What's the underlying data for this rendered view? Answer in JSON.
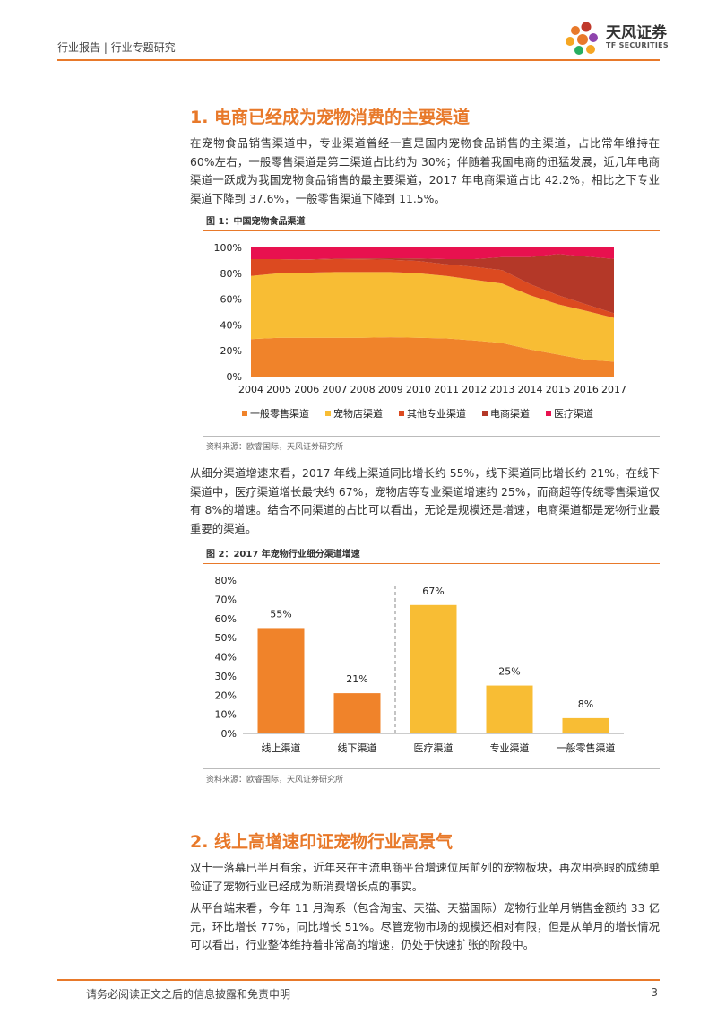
{
  "header": {
    "left_text": "行业报告 | 行业专题研究",
    "logo_cn": "天风证券",
    "logo_en": "TF SECURITIES"
  },
  "section1": {
    "title": "1. 电商已经成为宠物消费的主要渠道",
    "para": "在宠物食品销售渠道中，专业渠道曾经一直是国内宠物食品销售的主渠道，占比常年维持在 60%左右，一般零售渠道是第二渠道占比约为 30%；伴随着我国电商的迅猛发展，近几年电商渠道一跃成为我国宠物食品销售的最主要渠道，2017 年电商渠道占比 42.2%，相比之下专业渠道下降到 37.6%，一般零售渠道下降到 11.5%。"
  },
  "figure1": {
    "caption": "图 1：中国宠物食品渠道",
    "source": "资料来源：欧睿国际，天风证券研究所"
  },
  "para2": "从细分渠道增速来看，2017 年线上渠道同比增长约 55%，线下渠道同比增长约 21%，在线下渠道中，医疗渠道增长最快约 67%，宠物店等专业渠道增速约 25%，而商超等传统零售渠道仅有 8%的增速。结合不同渠道的占比可以看出，无论是规模还是增速，电商渠道都是宠物行业最重要的渠道。",
  "figure2": {
    "caption": "图 2：2017 年宠物行业细分渠道增速",
    "source": "资料来源：欧睿国际，天风证券研究所"
  },
  "section2": {
    "title": "2. 线上高增速印证宠物行业高景气",
    "para1": "双十一落幕已半月有余，近年来在主流电商平台增速位居前列的宠物板块，再次用亮眼的成绩单验证了宠物行业已经成为新消费增长点的事实。",
    "para2": "从平台端来看，今年 11 月淘系（包含淘宝、天猫、天猫国际）宠物行业单月销售金额约 33 亿元，环比增长 77%，同比增长 51%。尽管宠物市场的规模还相对有限，但是从单月的增长情况可以看出，行业整体维持着非常高的增速，仍处于快速扩张的阶段中。"
  },
  "footer": {
    "disclaimer": "请务必阅读正文之后的信息披露和免责申明",
    "page": "3"
  },
  "colors": {
    "accent": "#e8792a",
    "retail": "#f0832a",
    "petshop": "#f8bd34",
    "other_pro": "#dc4a20",
    "ecom": "#b43828",
    "medical": "#e8114f"
  },
  "chart_data": [
    {
      "type": "area",
      "stacked": true,
      "x": [
        "2004",
        "2005",
        "2006",
        "2007",
        "2008",
        "2009",
        "2010",
        "2011",
        "2012",
        "2013",
        "2014",
        "2015",
        "2016",
        "2017"
      ],
      "ylim": [
        0,
        100
      ],
      "yticks": [
        "0%",
        "20%",
        "40%",
        "60%",
        "80%",
        "100%"
      ],
      "series": [
        {
          "name": "一般零售渠道",
          "color": "#f0832a",
          "values": [
            29,
            30,
            30,
            30,
            30,
            30.5,
            30,
            29.5,
            28,
            26,
            21,
            17,
            13,
            11.5
          ]
        },
        {
          "name": "宠物店渠道",
          "color": "#f8bd34",
          "values": [
            49,
            50,
            50.5,
            51,
            51,
            50.5,
            50,
            48.5,
            47,
            46,
            42,
            39,
            38,
            34
          ]
        },
        {
          "name": "其他专业渠道",
          "color": "#dc4a20",
          "values": [
            13,
            11,
            10,
            10,
            9.8,
            9.5,
            9.5,
            9,
            10,
            10.5,
            8.6,
            7,
            5,
            3.5
          ]
        },
        {
          "name": "电商渠道",
          "color": "#b43828",
          "values": [
            0,
            0,
            0.2,
            0.4,
            0.7,
            1.2,
            2,
            4,
            6,
            10,
            21,
            32,
            37,
            42.2
          ]
        },
        {
          "name": "医疗渠道",
          "color": "#e8114f",
          "values": [
            9,
            9,
            9.3,
            8.6,
            8.5,
            8.3,
            8.5,
            9,
            9,
            7.5,
            7.4,
            5,
            7,
            8.8
          ]
        }
      ]
    },
    {
      "type": "bar",
      "categories": [
        "线上渠道",
        "线下渠道",
        "医疗渠道",
        "专业渠道",
        "一般零售渠道"
      ],
      "values": [
        55,
        21,
        67,
        25,
        8
      ],
      "labels": [
        "55%",
        "21%",
        "67%",
        "25%",
        "8%"
      ],
      "colors": [
        "#f0832a",
        "#f0832a",
        "#f8bd34",
        "#f8bd34",
        "#f8bd34"
      ],
      "ylim": [
        0,
        80
      ],
      "yticks": [
        "0%",
        "10%",
        "20%",
        "30%",
        "40%",
        "50%",
        "60%",
        "70%",
        "80%"
      ],
      "divider_after_index": 1
    }
  ]
}
